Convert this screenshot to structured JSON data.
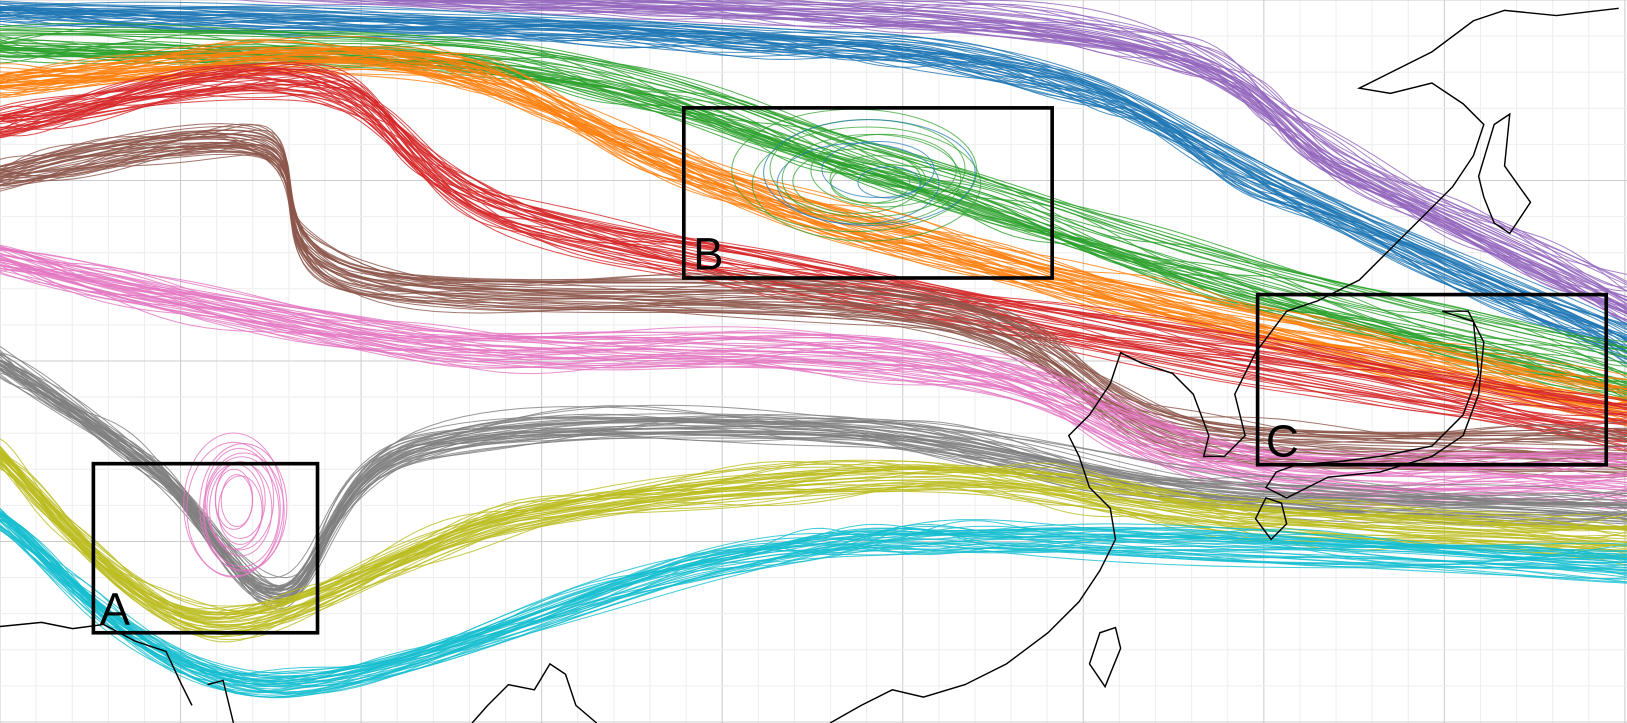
{
  "boxes": [
    {
      "label": "A"
    },
    {
      "label": "B"
    },
    {
      "label": "C"
    }
  ]
}
